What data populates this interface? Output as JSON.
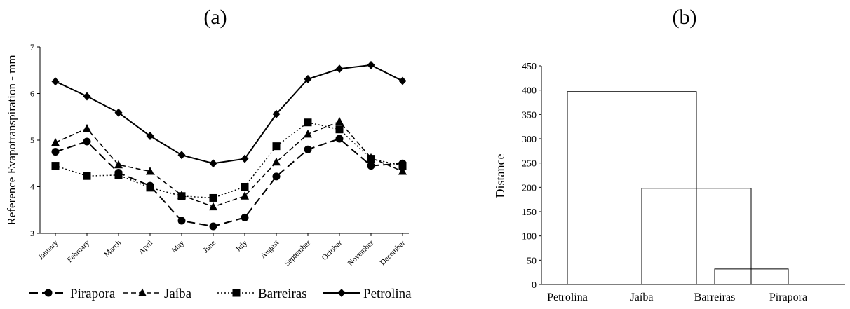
{
  "panels": {
    "a_label": "(a)",
    "b_label": "(b)"
  },
  "chart_data": [
    {
      "type": "line",
      "panel": "(a)",
      "ylabel": "Reference Evapotranspiration - mm",
      "xlabel": "",
      "ylim": [
        3,
        7
      ],
      "yticks": [
        3,
        4,
        5,
        6,
        7
      ],
      "categories": [
        "January",
        "February",
        "March",
        "April",
        "May",
        "June",
        "July",
        "August",
        "September",
        "October",
        "November",
        "December"
      ],
      "legend_position": "bottom",
      "series": [
        {
          "name": "Pirapora",
          "marker": "circle",
          "dash": "long-dash",
          "values": [
            4.75,
            4.97,
            4.3,
            4.02,
            3.27,
            3.15,
            3.34,
            4.22,
            4.8,
            5.03,
            4.45,
            4.5
          ]
        },
        {
          "name": "Jaíba",
          "marker": "triangle",
          "dash": "dash",
          "values": [
            4.95,
            5.25,
            4.47,
            4.33,
            3.82,
            3.57,
            3.8,
            4.53,
            5.13,
            5.4,
            4.62,
            4.33
          ]
        },
        {
          "name": "Barreiras",
          "marker": "square",
          "dash": "dotted",
          "values": [
            4.45,
            4.23,
            4.25,
            3.98,
            3.8,
            3.76,
            4.0,
            4.87,
            5.38,
            5.23,
            4.6,
            4.45
          ]
        },
        {
          "name": "Petrolina",
          "marker": "diamond",
          "dash": "solid",
          "values": [
            6.26,
            5.94,
            5.59,
            5.09,
            4.68,
            4.5,
            4.6,
            5.56,
            6.31,
            6.53,
            6.61,
            6.27
          ]
        }
      ]
    },
    {
      "type": "dendrogram",
      "panel": "(b)",
      "ylabel": "Distance",
      "ylim": [
        0,
        450
      ],
      "yticks": [
        0,
        50,
        100,
        150,
        200,
        250,
        300,
        350,
        400,
        450
      ],
      "leaves": [
        "Petrolina",
        "Jaíba",
        "Barreiras",
        "Pirapora"
      ],
      "merges": [
        {
          "left": "Barreiras",
          "right": "Pirapora",
          "height": 32
        },
        {
          "left": "Jaíba",
          "right": "Barreiras + Pirapora",
          "height": 198
        },
        {
          "left": "Petrolina",
          "right": "Jaíba + Barreiras + Pirapora",
          "height": 397
        }
      ]
    }
  ]
}
